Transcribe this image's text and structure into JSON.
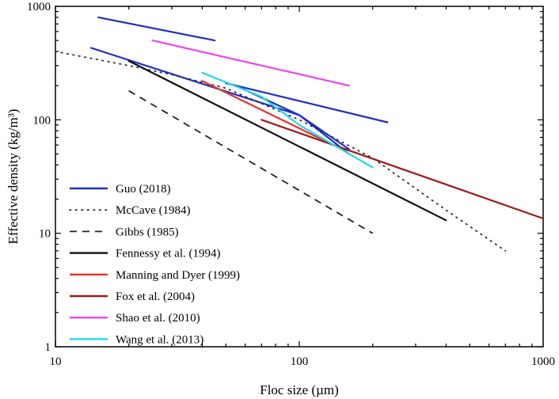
{
  "chart_data": {
    "type": "line",
    "xscale": "log",
    "yscale": "log",
    "xlim": [
      10,
      1000
    ],
    "ylim": [
      1,
      1000
    ],
    "xlabel": "Floc size (µm)",
    "ylabel": "Effective density (kg/m³)",
    "xticks": [
      {
        "value": 10,
        "label": "10"
      },
      {
        "value": 100,
        "label": "100"
      },
      {
        "value": 1000,
        "label": "1000"
      }
    ],
    "yticks": [
      {
        "value": 1,
        "label": "1"
      },
      {
        "value": 10,
        "label": "10"
      },
      {
        "value": 100,
        "label": "100"
      },
      {
        "value": 1000,
        "label": "1000"
      }
    ],
    "legend_position": "bottom-left",
    "series": [
      {
        "name": "Guo (2018)",
        "color": "#1f2fc8",
        "dash": "solid",
        "segments": [
          [
            [
              15,
              800
            ],
            [
              45,
              500
            ]
          ],
          [
            [
              14,
              430
            ],
            [
              100,
              110
            ],
            [
              160,
              50
            ]
          ],
          [
            [
              50,
              210
            ],
            [
              230,
              95
            ]
          ],
          [
            [
              55,
              200
            ],
            [
              100,
              110
            ],
            [
              160,
              55
            ]
          ]
        ]
      },
      {
        "name": "McCave (1984)",
        "color": "#333333",
        "dash": "dotted",
        "segments": [
          [
            [
              10,
              400
            ],
            [
              20,
              300
            ],
            [
              30,
              250
            ],
            [
              50,
              190
            ],
            [
              100,
              100
            ],
            [
              200,
              46
            ],
            [
              400,
              16
            ],
            [
              700,
              7
            ]
          ]
        ]
      },
      {
        "name": "Gibbs (1985)",
        "color": "#222222",
        "dash": "dashed",
        "segments": [
          [
            [
              20,
              180
            ],
            [
              200,
              10
            ]
          ]
        ]
      },
      {
        "name": "Fennessy et al. (1994)",
        "color": "#111111",
        "dash": "solid",
        "segments": [
          [
            [
              20,
              330
            ],
            [
              400,
              13
            ]
          ]
        ]
      },
      {
        "name": "Manning and Dyer (1999)",
        "color": "#e8332a",
        "dash": "solid",
        "segments": [
          [
            [
              40,
              220
            ],
            [
              150,
              55
            ]
          ]
        ]
      },
      {
        "name": "Fox et al. (2004)",
        "color": "#a01818",
        "dash": "solid",
        "segments": [
          [
            [
              70,
              100
            ],
            [
              1000,
              13.5
            ]
          ]
        ]
      },
      {
        "name": "Shao et al. (2010)",
        "color": "#ee44ee",
        "dash": "solid",
        "segments": [
          [
            [
              25,
              500
            ],
            [
              160,
              200
            ]
          ]
        ]
      },
      {
        "name": "Wang et al. (2013)",
        "color": "#22d8e8",
        "dash": "solid",
        "segments": [
          [
            [
              40,
              260
            ],
            [
              70,
              160
            ],
            [
              100,
              90
            ],
            [
              200,
              38
            ]
          ]
        ]
      }
    ]
  }
}
